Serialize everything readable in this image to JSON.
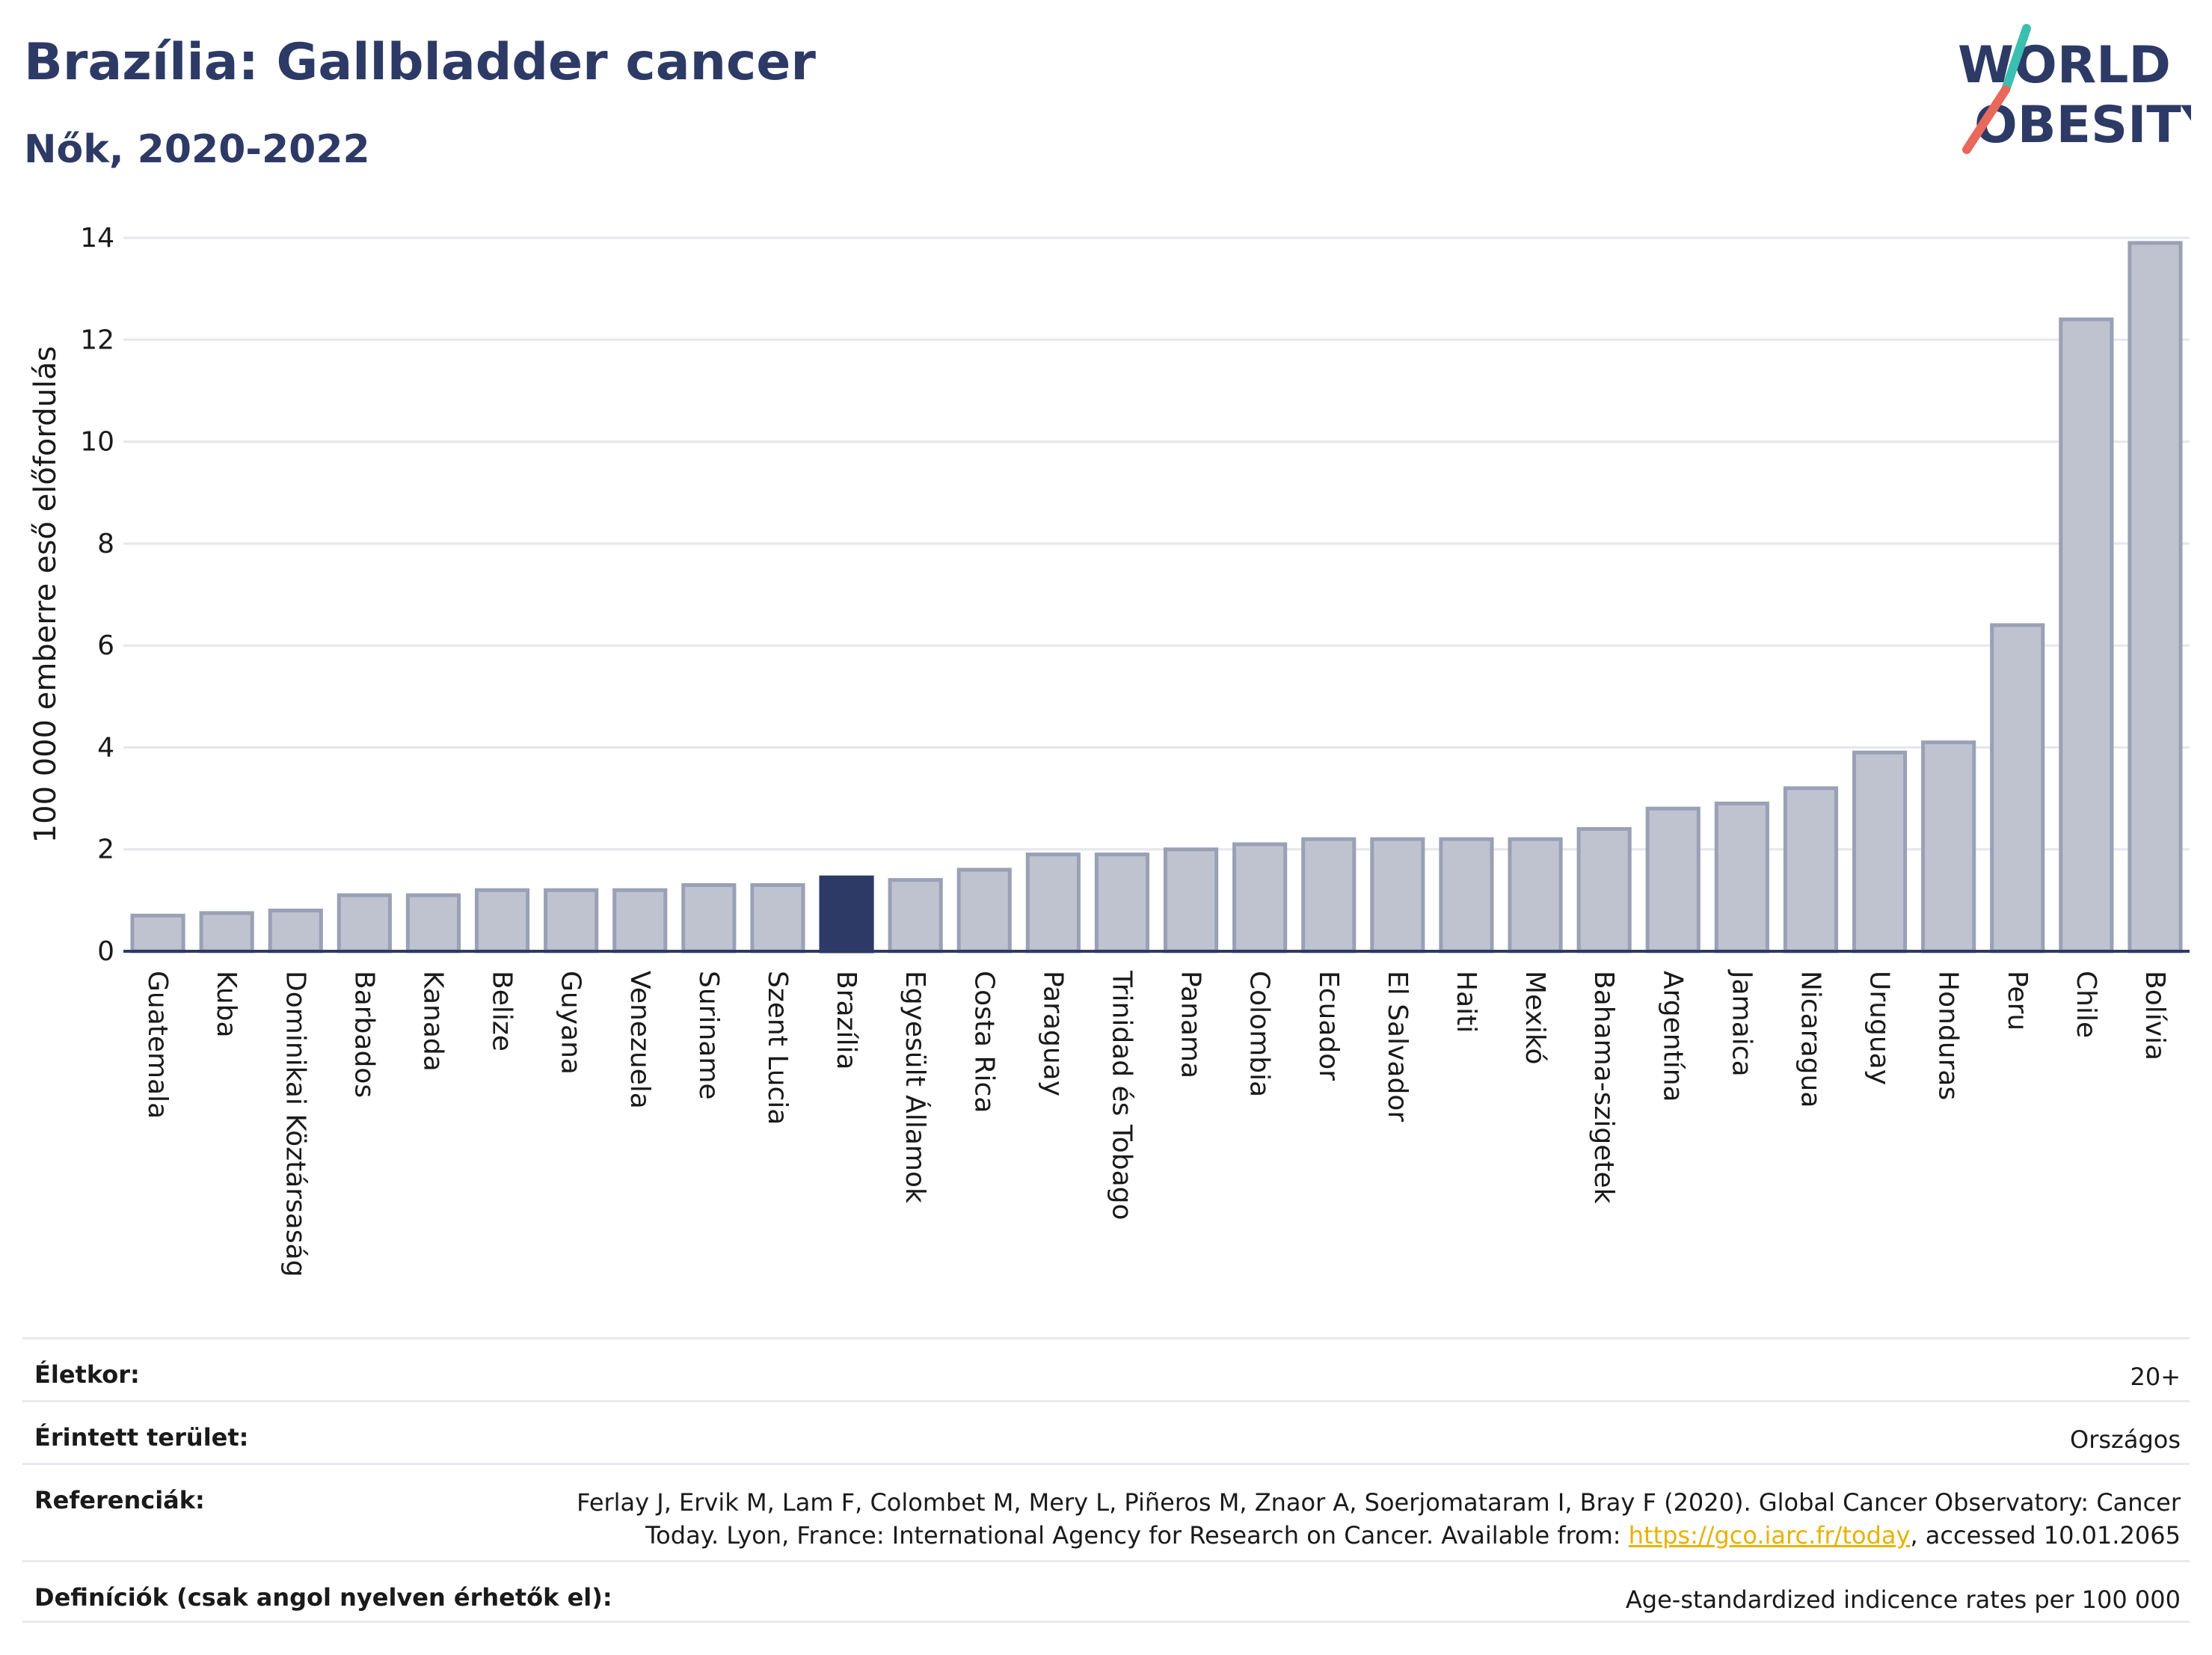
{
  "header": {
    "title": "Brazília: Gallbladder cancer",
    "subtitle": "Nők, 2020-2022"
  },
  "logo": {
    "line1": "WORLD",
    "line2": "OBESITY",
    "accent_teal": "#3bbfb1",
    "accent_red": "#e8685b",
    "text_color": "#2d3a66"
  },
  "colors": {
    "bar": "#bfc3d0",
    "bar_stroke": "#9aa0b6",
    "highlight": "#2d3a66"
  },
  "chart_data": {
    "type": "bar",
    "ylabel": "100 000 emberre eső előfordulás",
    "ylim": [
      0,
      14
    ],
    "yticks": [
      0,
      2,
      4,
      6,
      8,
      10,
      12,
      14
    ],
    "grid": true,
    "highlight": "Brazília",
    "categories": [
      "Guatemala",
      "Kuba",
      "Dominikai Köztársaság",
      "Barbados",
      "Kanada",
      "Belize",
      "Guyana",
      "Venezuela",
      "Suriname",
      "Szent Lucia",
      "Brazília",
      "Egyesült Államok",
      "Costa Rica",
      "Paraguay",
      "Trinidad és Tobago",
      "Panama",
      "Colombia",
      "Ecuador",
      "El Salvador",
      "Haiti",
      "Mexikó",
      "Bahama-szigetek",
      "Argentína",
      "Jamaica",
      "Nicaragua",
      "Uruguay",
      "Honduras",
      "Peru",
      "Chile",
      "Bolívia"
    ],
    "values": [
      0.7,
      0.75,
      0.8,
      1.1,
      1.1,
      1.2,
      1.2,
      1.2,
      1.3,
      1.3,
      1.45,
      1.4,
      1.6,
      1.9,
      1.9,
      2.0,
      2.1,
      2.2,
      2.2,
      2.2,
      2.2,
      2.4,
      2.8,
      2.9,
      3.2,
      3.9,
      4.1,
      6.4,
      12.4,
      13.9
    ]
  },
  "meta": {
    "age_label": "Életkor:",
    "age_value": "20+",
    "area_label": "Érintett terület:",
    "area_value": "Országos",
    "ref_label": "Referenciák:",
    "ref_text_1": "Ferlay J, Ervik M, Lam F, Colombet M, Mery L, Piñeros M, Znaor A, Soerjomataram I, Bray F (2020). Global Cancer Observatory: Cancer",
    "ref_text_2": "Today. Lyon, France: International Agency for Research on Cancer. Available from: ",
    "ref_link": "https://gco.iarc.fr/today",
    "ref_text_3": ", accessed 10.01.2065",
    "def_label": "Definíciók (csak angol nyelven érhetők el):",
    "def_value": "Age-standardized indicence rates per 100 000"
  }
}
